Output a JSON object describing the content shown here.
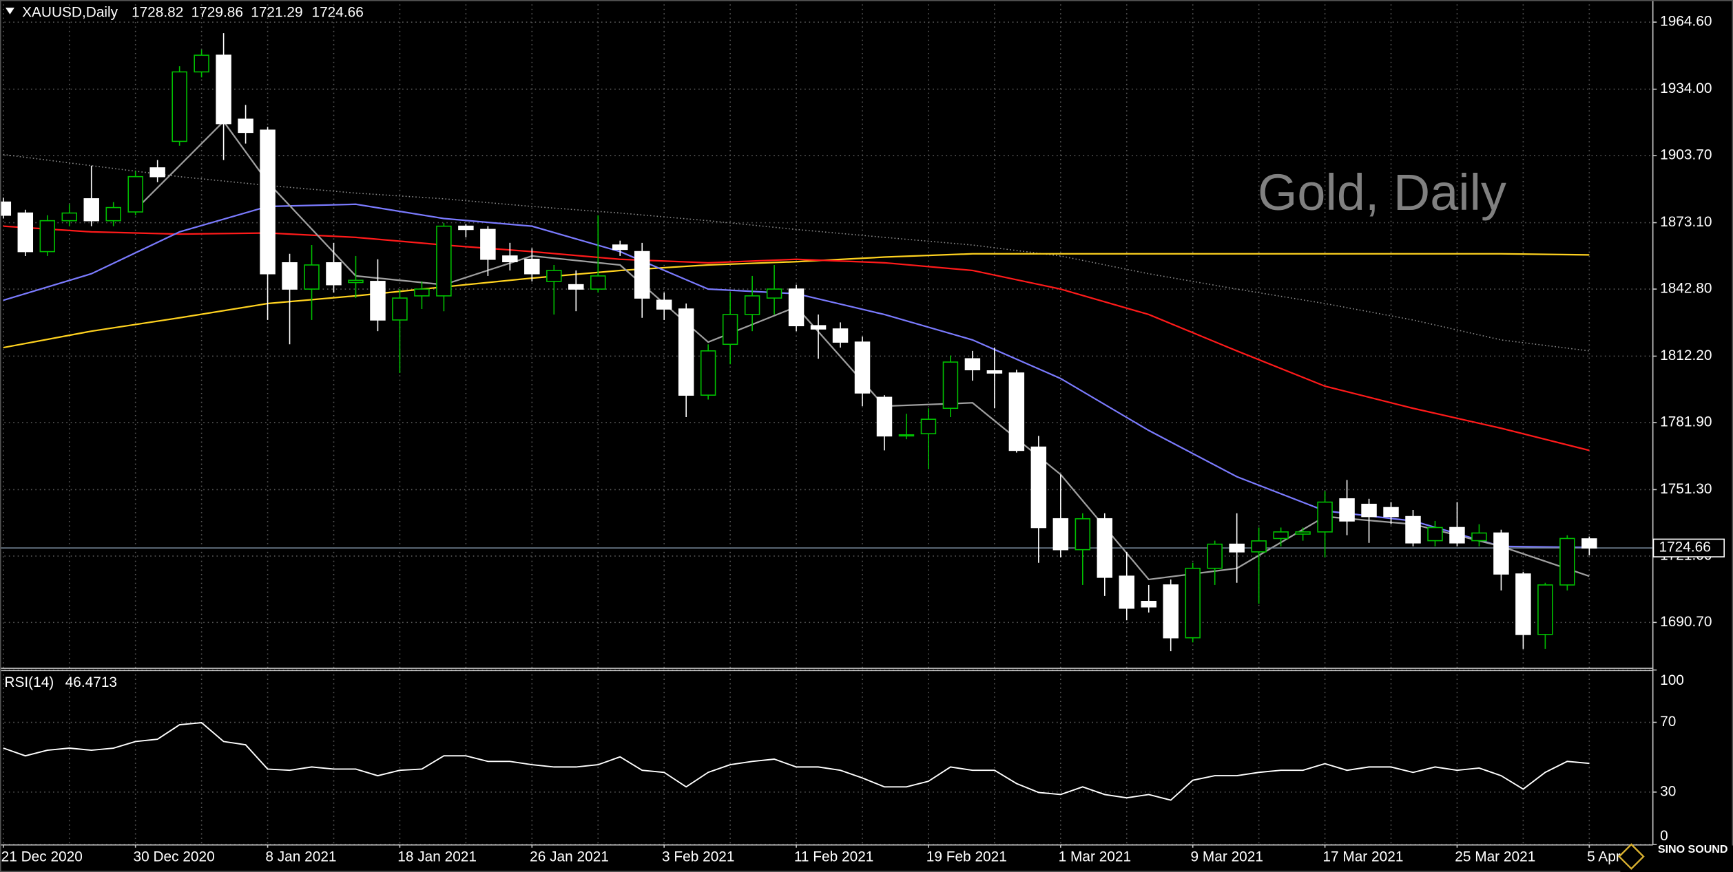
{
  "chart_data": {
    "type": "candlestick",
    "title": "XAUUSD,Daily",
    "annotation": "Gold, Daily",
    "watermark": "SINO SOUND",
    "categories": [
      "21 Dec 2020",
      null,
      null,
      null,
      null,
      null,
      "30 Dec 2020",
      null,
      null,
      null,
      null,
      null,
      "8 Jan 2021",
      null,
      null,
      null,
      null,
      null,
      "18 Jan 2021",
      null,
      null,
      null,
      null,
      null,
      "26 Jan 2021",
      null,
      null,
      null,
      null,
      null,
      "3 Feb 2021",
      null,
      null,
      null,
      null,
      null,
      "11 Feb 2021",
      null,
      null,
      null,
      null,
      null,
      "19 Feb 2021",
      null,
      null,
      null,
      null,
      null,
      "1 Mar 2021",
      null,
      null,
      null,
      null,
      null,
      "9 Mar 2021",
      null,
      null,
      null,
      null,
      null,
      "17 Mar 2021",
      null,
      null,
      null,
      null,
      null,
      "25 Mar 2021",
      null,
      null,
      null,
      null,
      null,
      "5 Apr 2021"
    ],
    "open": [
      1882.5,
      1877.5,
      1859.9,
      1874.0,
      1884.0,
      1874.0,
      1878.0,
      1898.1,
      1910.2,
      1941.9,
      1949.5,
      1920.3,
      1915.3,
      1854.8,
      1842.8,
      1854.8,
      1845.8,
      1846.3,
      1828.7,
      1839.7,
      1839.7,
      1871.5,
      1870.0,
      1857.9,
      1856.4,
      1846.3,
      1844.8,
      1842.8,
      1862.9,
      1859.9,
      1837.7,
      1833.7,
      1794.4,
      1817.6,
      1831.2,
      1838.7,
      1842.8,
      1826.1,
      1824.6,
      1818.6,
      1793.4,
      1775.8,
      1776.8,
      1788.4,
      1811.0,
      1805.5,
      1804.5,
      1770.7,
      1738.0,
      1723.9,
      1738.0,
      1711.8,
      1700.3,
      1707.8,
      1683.7,
      1715.4,
      1726.4,
      1722.9,
      1729.0,
      1731.0,
      1732.0,
      1747.1,
      1744.6,
      1743.1,
      1739.0,
      1728.0,
      1734.0,
      1728.0,
      1731.5,
      1712.8,
      1685.2,
      1707.8,
      1728.82
    ],
    "high": [
      1884.5,
      1879.0,
      1876.5,
      1881.5,
      1899.1,
      1882.5,
      1896.6,
      1901.7,
      1944.5,
      1952.0,
      1959.6,
      1926.8,
      1916.8,
      1858.9,
      1862.9,
      1863.9,
      1857.9,
      1856.4,
      1842.8,
      1846.3,
      1873.0,
      1872.5,
      1871.5,
      1863.9,
      1861.4,
      1853.8,
      1851.3,
      1876.5,
      1864.9,
      1863.9,
      1841.2,
      1836.2,
      1817.6,
      1841.2,
      1848.8,
      1853.8,
      1844.8,
      1831.2,
      1827.6,
      1821.1,
      1794.4,
      1785.9,
      1788.4,
      1812.5,
      1814.6,
      1816.1,
      1806.0,
      1775.8,
      1758.2,
      1740.5,
      1740.5,
      1722.9,
      1707.8,
      1710.3,
      1717.9,
      1728.0,
      1740.5,
      1734.0,
      1734.0,
      1734.0,
      1750.6,
      1755.7,
      1747.1,
      1745.6,
      1742.0,
      1737.0,
      1745.6,
      1735.5,
      1733.0,
      1713.8,
      1708.8,
      1730.5,
      1729.86
    ],
    "low": [
      1875.0,
      1857.9,
      1857.9,
      1871.5,
      1871.5,
      1871.5,
      1876.5,
      1891.6,
      1908.2,
      1939.4,
      1901.7,
      1909.2,
      1828.7,
      1817.6,
      1828.7,
      1841.2,
      1838.7,
      1823.6,
      1804.5,
      1833.7,
      1832.7,
      1866.4,
      1848.8,
      1851.3,
      1846.3,
      1831.2,
      1832.7,
      1841.2,
      1857.9,
      1829.7,
      1828.7,
      1784.4,
      1792.4,
      1808.5,
      1823.6,
      1831.2,
      1823.6,
      1811.0,
      1816.1,
      1789.4,
      1769.2,
      1774.3,
      1760.7,
      1784.4,
      1801.0,
      1788.4,
      1768.2,
      1717.9,
      1720.4,
      1707.8,
      1702.8,
      1691.7,
      1695.2,
      1677.6,
      1681.6,
      1707.8,
      1708.8,
      1699.2,
      1725.4,
      1728.0,
      1720.4,
      1730.5,
      1727.0,
      1735.5,
      1725.4,
      1725.4,
      1725.4,
      1725.4,
      1705.3,
      1678.6,
      1678.6,
      1705.3,
      1721.29
    ],
    "close": [
      1876.5,
      1859.9,
      1874.0,
      1877.5,
      1874.0,
      1880.0,
      1894.1,
      1894.1,
      1941.9,
      1949.5,
      1918.3,
      1914.3,
      1849.8,
      1842.8,
      1853.8,
      1844.8,
      1846.8,
      1828.7,
      1838.7,
      1842.8,
      1871.5,
      1870.0,
      1856.4,
      1855.3,
      1849.8,
      1851.3,
      1842.8,
      1848.8,
      1860.9,
      1838.7,
      1833.7,
      1794.4,
      1814.6,
      1831.2,
      1839.7,
      1842.8,
      1826.1,
      1824.6,
      1818.6,
      1795.4,
      1775.8,
      1776.3,
      1783.4,
      1809.5,
      1806.0,
      1804.5,
      1769.2,
      1734.0,
      1723.9,
      1738.0,
      1711.3,
      1697.2,
      1697.8,
      1683.7,
      1715.4,
      1726.4,
      1722.9,
      1727.9,
      1732.0,
      1732.0,
      1745.6,
      1737.0,
      1739.0,
      1739.0,
      1727.0,
      1734.0,
      1727.0,
      1731.5,
      1712.8,
      1685.2,
      1707.8,
      1729.0,
      1724.66
    ],
    "up_color": "#00c000",
    "down_color": "#ffffff",
    "ylim": [
      1670.0,
      1974.7
    ],
    "yticks": [
      {
        "value": 1964.6,
        "label": "1964.60"
      },
      {
        "value": 1934.0,
        "label": "1934.00"
      },
      {
        "value": 1903.7,
        "label": "1903.70"
      },
      {
        "value": 1873.1,
        "label": "1873.10"
      },
      {
        "value": 1842.8,
        "label": "1842.80"
      },
      {
        "value": 1812.2,
        "label": "1812.20"
      },
      {
        "value": 1781.9,
        "label": "1781.90"
      },
      {
        "value": 1751.3,
        "label": "1751.30"
      },
      {
        "value": 1721.0,
        "label": "1721.00"
      },
      {
        "value": 1690.7,
        "label": "1690.70"
      }
    ],
    "grid": true,
    "overlays": [
      {
        "color": "#8a8a8a",
        "style": "dotted",
        "x": [
          0,
          4,
          8,
          12,
          16,
          20,
          24,
          28,
          32,
          36,
          40,
          44,
          48,
          52,
          56,
          60,
          64,
          68,
          72
        ],
        "values": [
          1904.2,
          1899.1,
          1894.1,
          1890.1,
          1886.6,
          1884.0,
          1880.5,
          1877.5,
          1874.0,
          1870.0,
          1866.4,
          1862.9,
          1857.9,
          1849.8,
          1842.8,
          1836.2,
          1828.7,
          1819.6,
          1814.6
        ]
      },
      {
        "color": "#ffd21f",
        "style": "solid",
        "x": [
          0,
          4,
          8,
          12,
          16,
          20,
          24,
          28,
          32,
          36,
          40,
          44,
          48,
          52,
          56,
          60,
          64,
          68,
          72
        ],
        "values": [
          1816.1,
          1823.6,
          1829.7,
          1836.2,
          1839.7,
          1843.8,
          1847.8,
          1851.3,
          1853.8,
          1855.3,
          1857.4,
          1858.9,
          1858.9,
          1858.9,
          1858.9,
          1858.9,
          1858.9,
          1858.9,
          1858.4
        ]
      },
      {
        "color": "#ff1a1a",
        "style": "solid",
        "x": [
          0,
          4,
          8,
          12,
          16,
          20,
          24,
          28,
          32,
          36,
          40,
          44,
          48,
          52,
          56,
          60,
          64,
          68,
          72
        ],
        "values": [
          1871.5,
          1868.9,
          1867.9,
          1868.4,
          1866.4,
          1862.9,
          1859.9,
          1856.4,
          1854.8,
          1856.4,
          1854.8,
          1851.3,
          1842.8,
          1831.2,
          1814.6,
          1798.5,
          1788.4,
          1779.3,
          1769.2
        ]
      },
      {
        "color": "#7b7bff",
        "style": "solid",
        "x": [
          0,
          4,
          8,
          12,
          16,
          20,
          24,
          28,
          32,
          36,
          40,
          44,
          48,
          52,
          56,
          60,
          64,
          68,
          72
        ],
        "values": [
          1837.7,
          1849.8,
          1868.9,
          1880.5,
          1881.5,
          1875.0,
          1871.5,
          1859.9,
          1842.8,
          1840.7,
          1831.2,
          1819.6,
          1802.0,
          1778.3,
          1757.2,
          1741.6,
          1737.0,
          1725.4,
          1724.9
        ]
      },
      {
        "color": "#a0a0a0",
        "style": "solid",
        "x": [
          6,
          8,
          10,
          12,
          16,
          20,
          24,
          28,
          32,
          36,
          40,
          44,
          48,
          52,
          56,
          60,
          64,
          68,
          72
        ],
        "values": [
          1879.0,
          1899.1,
          1919.3,
          1891.6,
          1848.8,
          1844.8,
          1857.9,
          1853.8,
          1818.6,
          1834.7,
          1789.4,
          1790.9,
          1758.2,
          1710.3,
          1715.4,
          1739.0,
          1735.5,
          1725.4,
          1711.8
        ]
      }
    ],
    "rsi": {
      "title": "RSI(14)",
      "color": "#ffffff",
      "values": [
        55.2,
        50.8,
        54.0,
        55.2,
        54.0,
        55.2,
        59.0,
        60.3,
        68.6,
        69.8,
        59.0,
        57.1,
        43.2,
        42.5,
        44.4,
        43.2,
        43.2,
        39.4,
        42.5,
        43.2,
        50.8,
        50.8,
        47.6,
        47.6,
        45.7,
        44.4,
        44.4,
        45.7,
        50.2,
        42.5,
        41.3,
        33.0,
        41.3,
        45.7,
        47.6,
        48.9,
        44.4,
        44.4,
        42.5,
        38.1,
        33.0,
        33.0,
        36.2,
        44.4,
        42.5,
        42.5,
        34.9,
        29.8,
        28.6,
        33.0,
        28.6,
        26.7,
        28.6,
        25.4,
        36.8,
        39.4,
        39.4,
        41.3,
        42.5,
        42.5,
        46.3,
        42.5,
        44.4,
        44.4,
        41.3,
        44.4,
        42.5,
        43.8,
        39.4,
        31.7,
        41.3,
        47.6,
        46.4713
      ],
      "ylim": [
        0,
        100
      ],
      "yticks": [
        100,
        70,
        30,
        0
      ]
    }
  }
}
